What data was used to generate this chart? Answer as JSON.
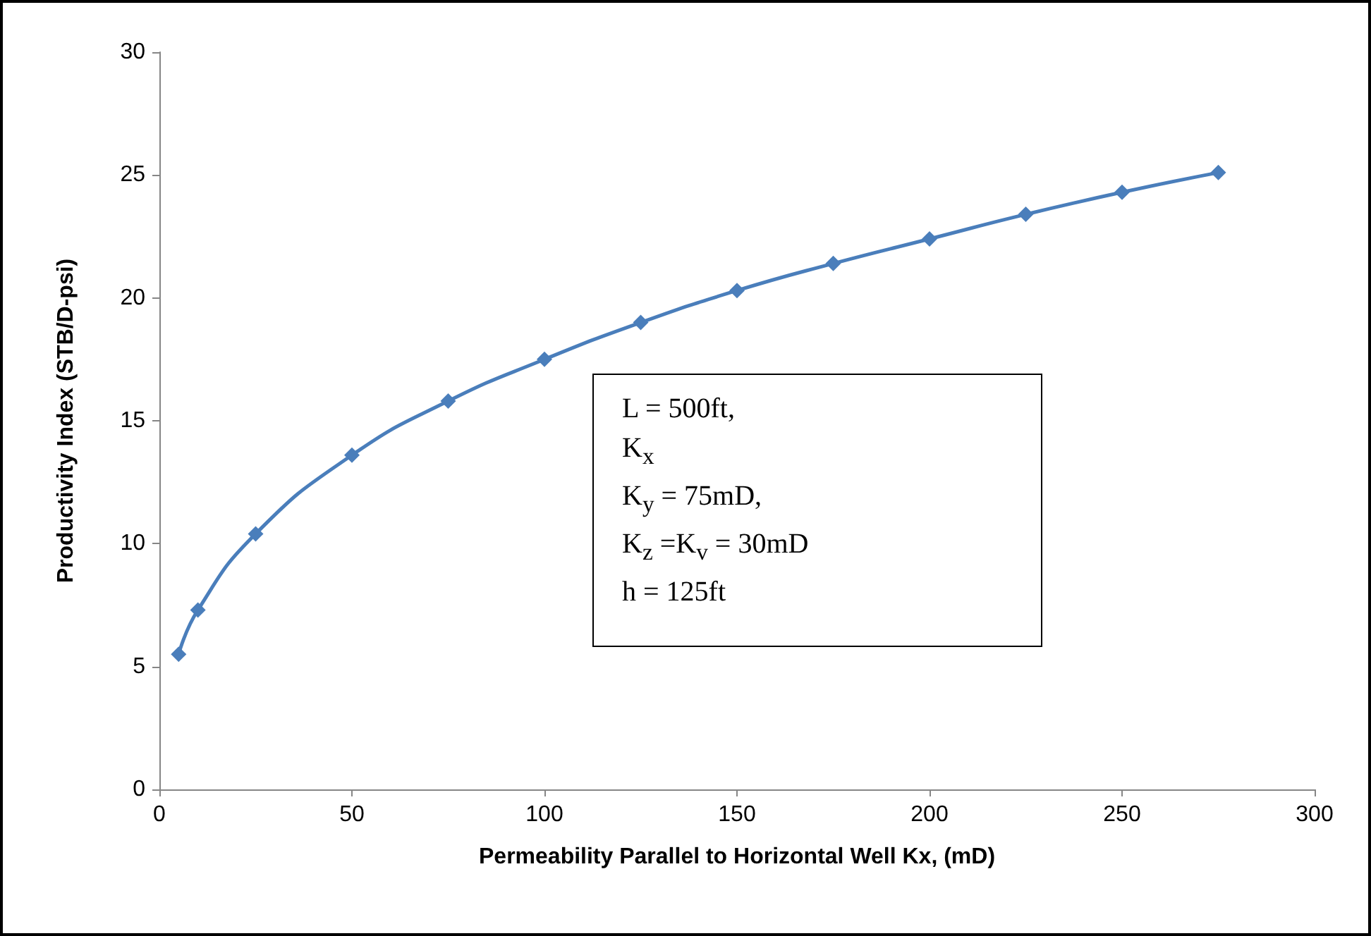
{
  "chart_data": {
    "type": "line",
    "xlabel": "Permeability Parallel to Horizontal Well Kx, (mD)",
    "ylabel": "Productivity Index (STB/D-psi)",
    "x": [
      5,
      10,
      25,
      50,
      75,
      100,
      125,
      150,
      175,
      200,
      225,
      250,
      275
    ],
    "series": [
      {
        "color": "#4a7ebb",
        "values": [
          5.5,
          7.3,
          10.4,
          13.6,
          15.8,
          17.5,
          19.0,
          20.3,
          21.4,
          22.4,
          23.4,
          24.3,
          25.1
        ]
      }
    ],
    "xlim": [
      0,
      300
    ],
    "xticks": [
      0,
      50,
      100,
      150,
      200,
      250,
      300
    ],
    "ylim": [
      0,
      30
    ],
    "yticks": [
      0,
      5,
      10,
      15,
      20,
      25,
      30
    ],
    "annotations": [
      "L = 500ft,",
      "K$_{x}$",
      "K$_{y}$ = 75mD,",
      "K$_{z}$ =K$_{v}$ = 30mD",
      "h = 125ft"
    ],
    "grid": false,
    "marker": "diamond",
    "line_style": "solid"
  }
}
